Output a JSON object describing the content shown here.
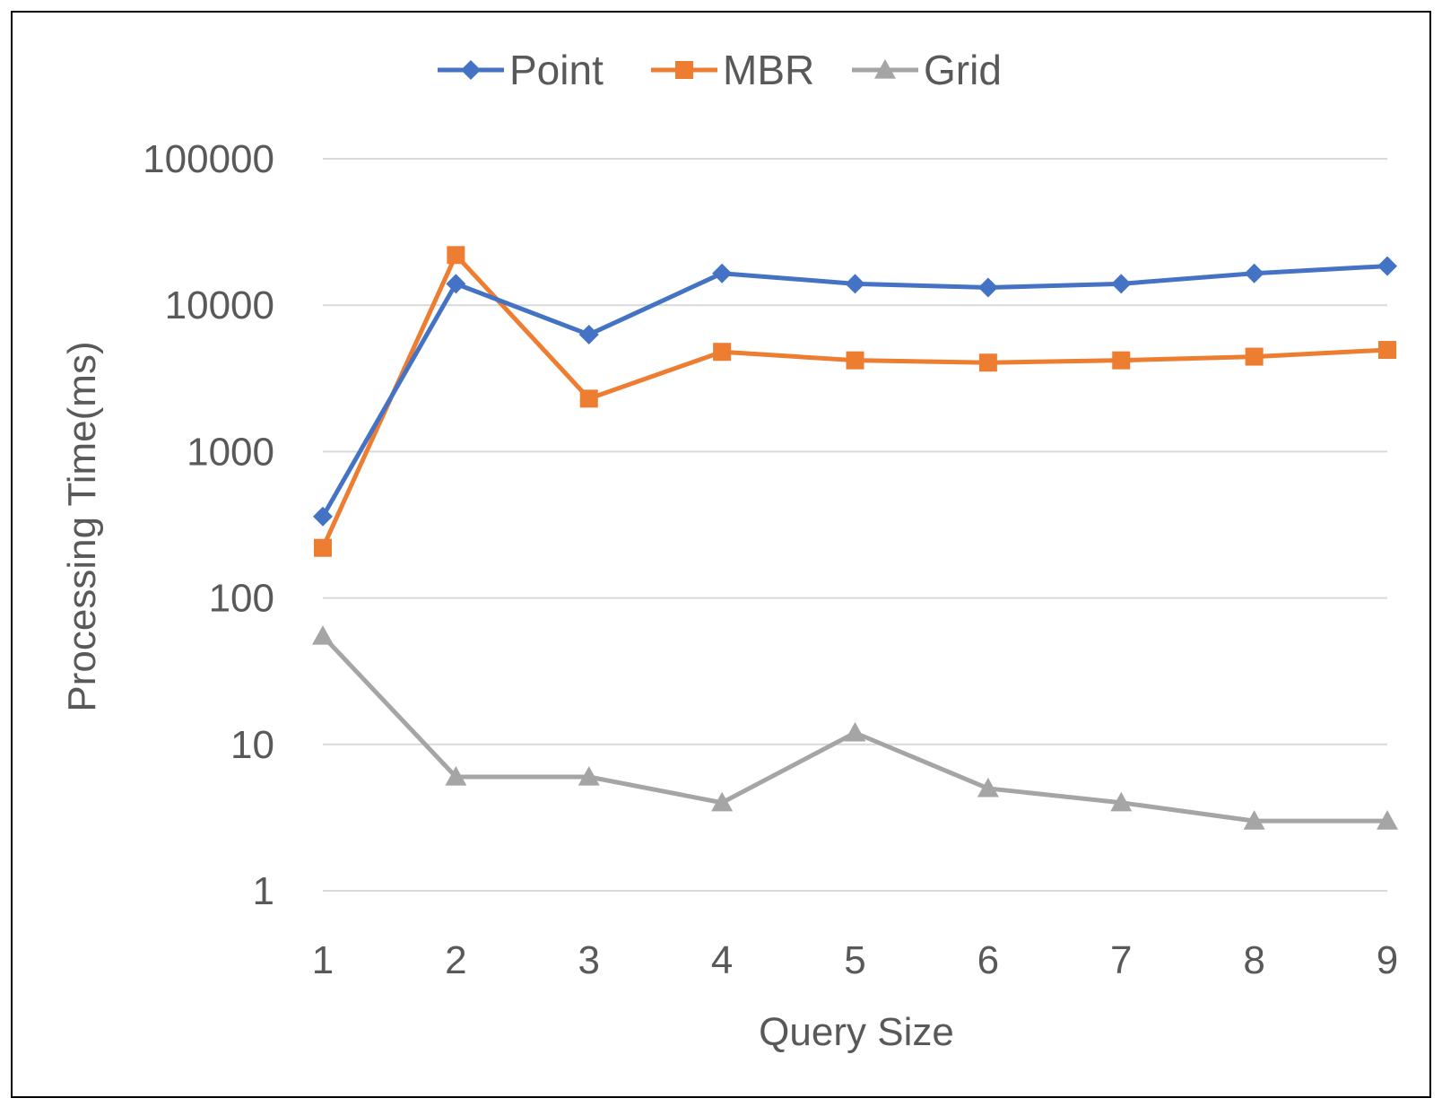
{
  "chart_data": {
    "type": "line",
    "title": "",
    "xlabel": "Query Size",
    "ylabel": "Processing Time(ms)",
    "y_scale": "log",
    "ylim": [
      1,
      100000
    ],
    "y_ticks": [
      "1",
      "10",
      "100",
      "1000",
      "10000",
      "100000"
    ],
    "x": [
      1,
      2,
      3,
      4,
      5,
      6,
      7,
      8,
      9
    ],
    "x_ticks": [
      "1",
      "2",
      "3",
      "4",
      "5",
      "6",
      "7",
      "8",
      "9"
    ],
    "grid": true,
    "legend_position": "top",
    "series": [
      {
        "name": "Point",
        "color": "#4472c4",
        "marker": "diamond",
        "values": [
          360,
          14000,
          6300,
          16500,
          14000,
          13200,
          14000,
          16500,
          18500
        ]
      },
      {
        "name": "MBR",
        "color": "#ed7d31",
        "marker": "square",
        "values": [
          220,
          22000,
          2300,
          4800,
          4200,
          4050,
          4200,
          4450,
          4950
        ]
      },
      {
        "name": "Grid",
        "color": "#a5a5a5",
        "marker": "triangle",
        "values": [
          55,
          6,
          6,
          4,
          12,
          5,
          4,
          3,
          3
        ]
      }
    ]
  }
}
